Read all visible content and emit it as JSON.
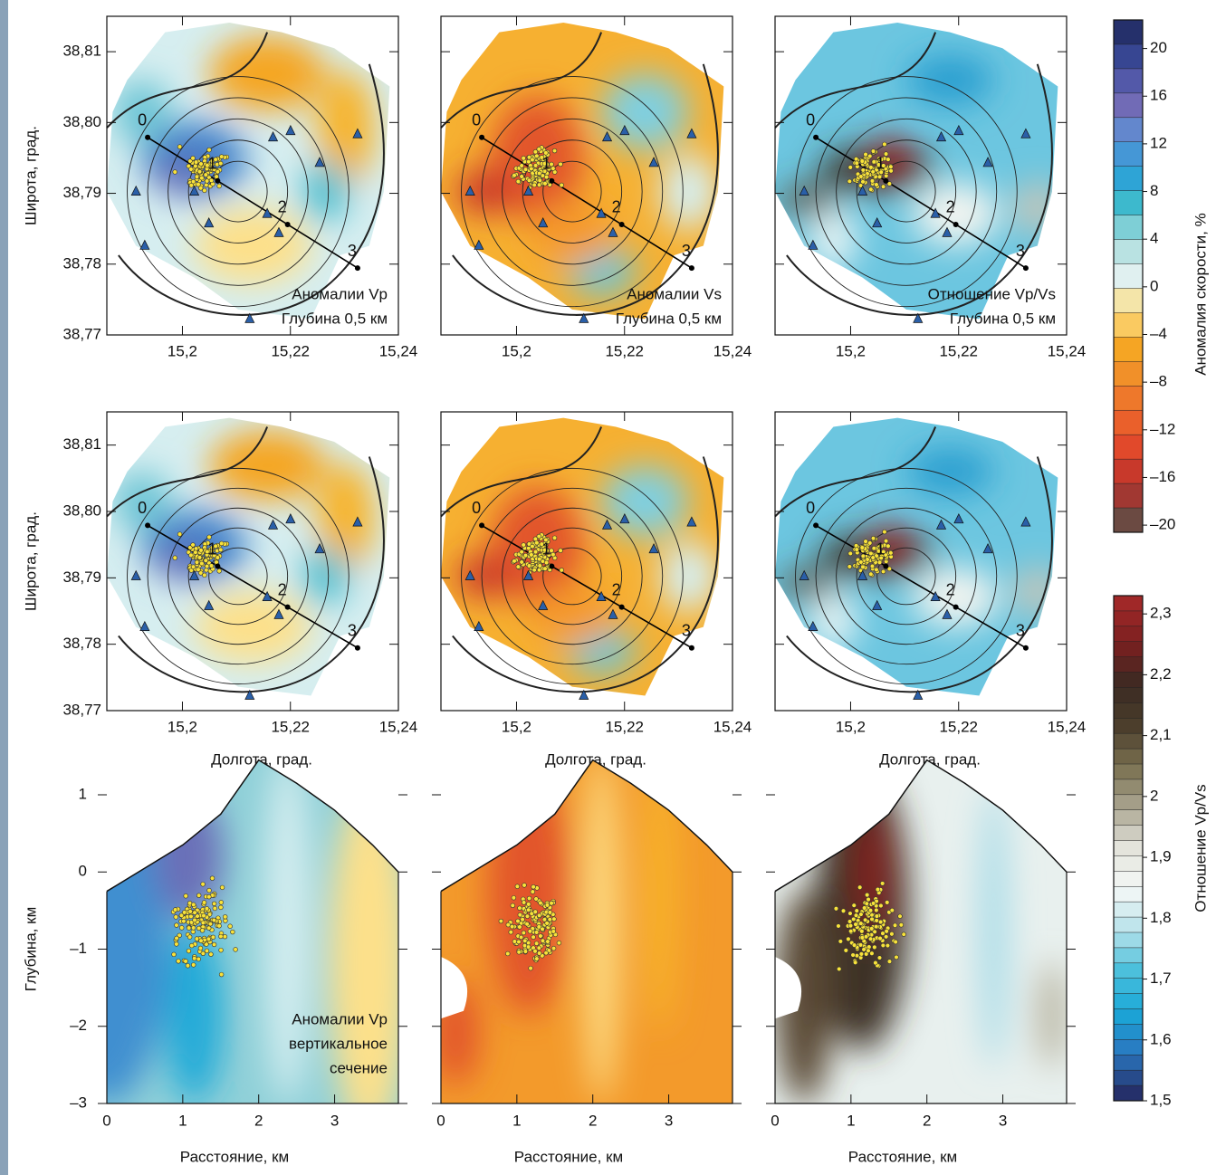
{
  "chart_data": [
    {
      "type": "map",
      "xlabel": "Долгота, град.",
      "ylabel": "Широта, град.",
      "xlim": [
        15.186,
        15.24
      ],
      "ylim": [
        38.77,
        38.815
      ],
      "xticks": [
        {
          "value": 15.2,
          "label": "15,2"
        },
        {
          "value": 15.22,
          "label": "15,22"
        },
        {
          "value": 15.24,
          "label": "15,24"
        }
      ],
      "yticks": [
        {
          "value": 38.77,
          "label": "38,77"
        },
        {
          "value": 38.78,
          "label": "38,78"
        },
        {
          "value": 38.79,
          "label": "38,79"
        },
        {
          "value": 38.8,
          "label": "38,80"
        },
        {
          "value": 38.81,
          "label": "38,81"
        }
      ],
      "profile_labels": [
        "0",
        "1",
        "2",
        "3"
      ],
      "annotations": [
        [
          "Аномалии Vp",
          "Глубина 0,5 км"
        ],
        [
          "Аномалии Vs",
          "Глубина 0,5 км"
        ],
        [
          "Отношение Vp/Vs",
          "Глубина 0,5 км"
        ]
      ]
    },
    {
      "type": "section",
      "xlabel": "Расстояние, км",
      "ylabel": "Глубина, км",
      "xlim": [
        0,
        3.84
      ],
      "ylim": [
        -3,
        1
      ],
      "xticks": [
        0,
        1,
        2,
        3
      ],
      "yticks": [
        1,
        0,
        {
          "value": -1,
          "label": "–1"
        },
        {
          "value": -2,
          "label": "–2"
        },
        {
          "value": -3,
          "label": "–3"
        }
      ],
      "annotation": [
        "Аномалии Vp",
        "вертикальное",
        "сечение"
      ]
    },
    {
      "type": "colorbar",
      "label": "Аномалия скорости, %",
      "ylim": [
        -20.6,
        22.4
      ],
      "yticks": [
        20,
        16,
        12,
        8,
        4,
        0,
        {
          "value": -4,
          "label": "–4"
        },
        {
          "value": -8,
          "label": "–8"
        },
        {
          "value": -12,
          "label": "–12"
        },
        {
          "value": -16,
          "label": "–16"
        },
        {
          "value": -20,
          "label": "–20"
        }
      ]
    },
    {
      "type": "colorbar",
      "label": "Отношение Vp/Vs",
      "ylim": [
        1.5,
        2.33
      ],
      "yticks": [
        {
          "value": 2.3,
          "label": "2,3"
        },
        {
          "value": 2.2,
          "label": "2,2"
        },
        {
          "value": 2.1,
          "label": "2,1"
        },
        2,
        {
          "value": 1.9,
          "label": "1,9"
        },
        {
          "value": 1.8,
          "label": "1,8"
        },
        {
          "value": 1.7,
          "label": "1,7"
        },
        {
          "value": 1.6,
          "label": "1,6"
        },
        {
          "value": 1.5,
          "label": "1,5"
        }
      ]
    }
  ]
}
